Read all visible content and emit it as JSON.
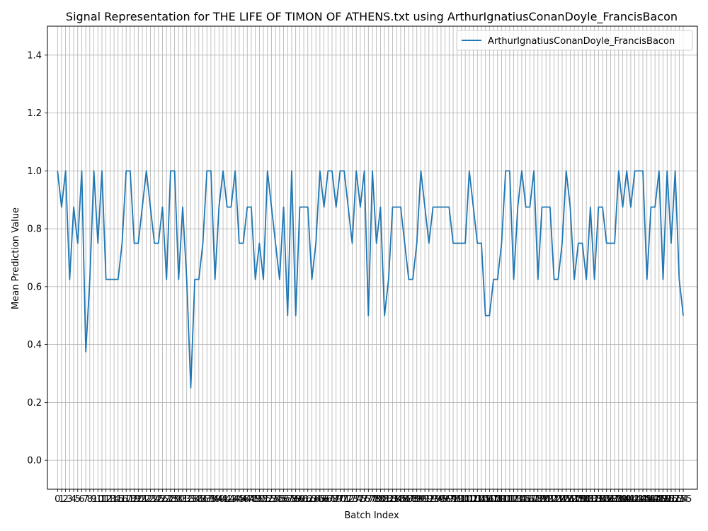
{
  "chart_data": {
    "type": "line",
    "title": "Signal Representation for THE LIFE OF TIMON OF ATHENS.txt using ArthurIgnatiusConanDoyle_FrancisBacon",
    "xlabel": "Batch Index",
    "ylabel": "Mean Prediction Value",
    "ylim": [
      -0.1,
      1.5
    ],
    "xlim": [
      -2.5,
      158.5
    ],
    "yticks": [
      0.0,
      0.2,
      0.4,
      0.6,
      0.8,
      1.0,
      1.2,
      1.4
    ],
    "grid": true,
    "legend_position": "upper-right",
    "colors": {
      "series": "#1f77b4",
      "grid": "#b0b0b0"
    },
    "series": [
      {
        "name": "ArthurIgnatiusConanDoyle_FrancisBacon",
        "values": [
          1.0,
          0.875,
          1.0,
          0.625,
          0.875,
          0.75,
          1.0,
          0.375,
          0.625,
          1.0,
          0.75,
          1.0,
          0.625,
          0.625,
          0.625,
          0.625,
          0.75,
          1.0,
          1.0,
          0.75,
          0.75,
          0.875,
          1.0,
          0.875,
          0.75,
          0.75,
          0.875,
          0.625,
          1.0,
          1.0,
          0.625,
          0.875,
          0.625,
          0.25,
          0.625,
          0.625,
          0.75,
          1.0,
          1.0,
          0.625,
          0.875,
          1.0,
          0.875,
          0.875,
          1.0,
          0.75,
          0.75,
          0.875,
          0.875,
          0.625,
          0.75,
          0.625,
          1.0,
          0.875,
          0.75,
          0.625,
          0.875,
          0.5,
          1.0,
          0.5,
          0.875,
          0.875,
          0.875,
          0.625,
          0.75,
          1.0,
          0.875,
          1.0,
          1.0,
          0.875,
          1.0,
          1.0,
          0.875,
          0.75,
          1.0,
          0.875,
          1.0,
          0.5,
          1.0,
          0.75,
          0.875,
          0.5,
          0.625,
          0.875,
          0.875,
          0.875,
          0.75,
          0.625,
          0.625,
          0.75,
          1.0,
          0.875,
          0.75,
          0.875,
          0.875,
          0.875,
          0.875,
          0.875,
          0.75,
          0.75,
          0.75,
          0.75,
          1.0,
          0.875,
          0.75,
          0.75,
          0.5,
          0.5,
          0.625,
          0.625,
          0.75,
          1.0,
          1.0,
          0.625,
          0.875,
          1.0,
          0.875,
          0.875,
          1.0,
          0.625,
          0.875,
          0.875,
          0.875,
          0.625,
          0.625,
          0.75,
          1.0,
          0.875,
          0.625,
          0.75,
          0.75,
          0.625,
          0.875,
          0.625,
          0.875,
          0.875,
          0.75,
          0.75,
          0.75,
          1.0,
          0.875,
          1.0,
          0.875,
          1.0,
          1.0,
          1.0,
          0.625,
          0.875,
          0.875,
          1.0,
          0.625,
          1.0,
          0.75,
          1.0,
          0.625,
          0.5
        ]
      }
    ]
  }
}
